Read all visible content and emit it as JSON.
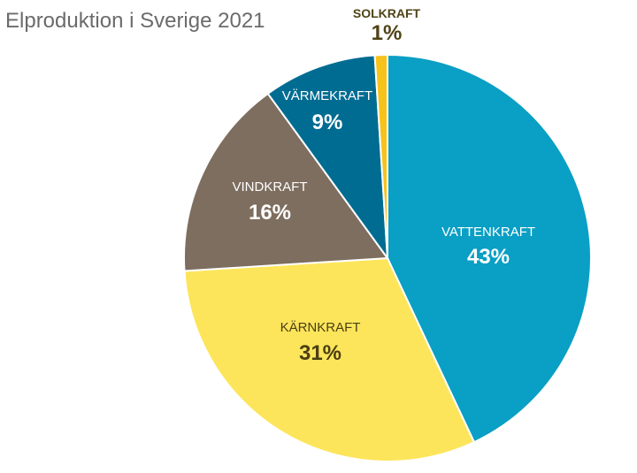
{
  "chart_data": {
    "type": "pie",
    "title": "Elproduktion i Sverige 2021",
    "start": "top",
    "direction": "clockwise",
    "slices": [
      {
        "label": "VATTENKRAFT",
        "value": 43,
        "value_label": "43%",
        "color": "#0a9fc4",
        "text_color": "#ffffff"
      },
      {
        "label": "KÄRNKRAFT",
        "value": 31,
        "value_label": "31%",
        "color": "#fde55b",
        "text_color": "#4a3f12"
      },
      {
        "label": "VINDKRAFT",
        "value": 16,
        "value_label": "16%",
        "color": "#7d6e5f",
        "text_color": "#ffffff"
      },
      {
        "label": "VÄRMEKRAFT",
        "value": 9,
        "value_label": "9%",
        "color": "#006c92",
        "text_color": "#ffffff"
      },
      {
        "label": "SOLKRAFT",
        "value": 1,
        "value_label": "1%",
        "color": "#f6c31a",
        "text_color": "#4f4316"
      }
    ]
  }
}
